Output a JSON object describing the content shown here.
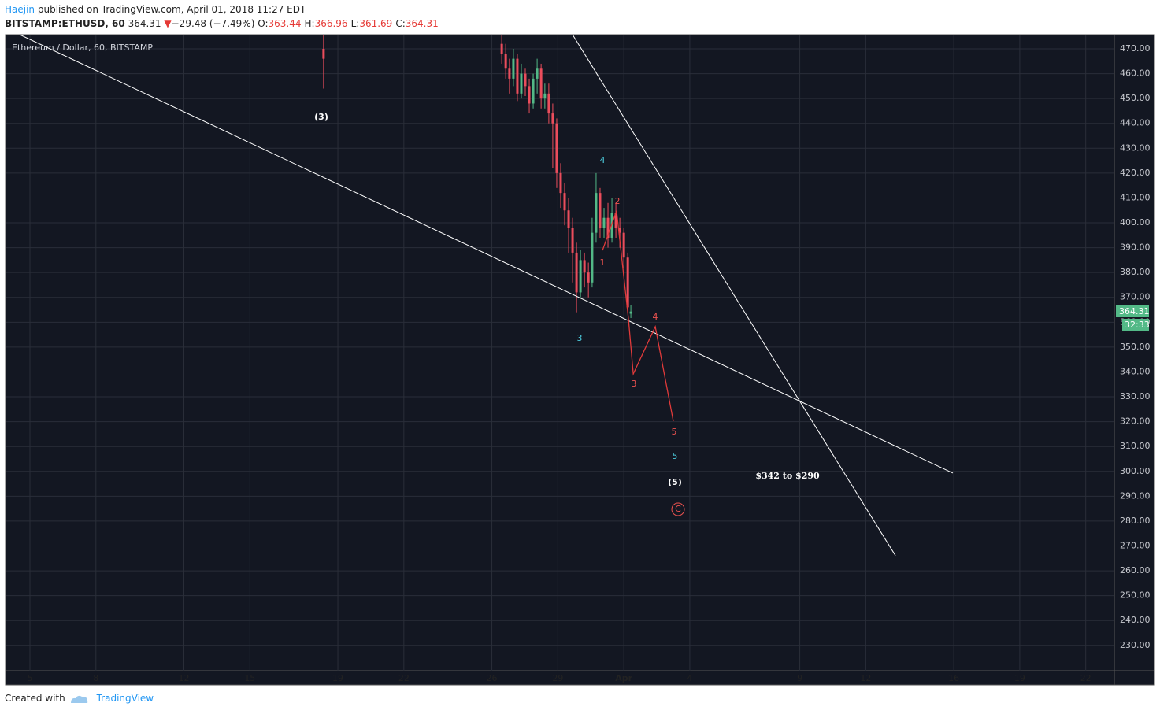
{
  "header": {
    "author": "Haejin",
    "published": " published on TradingView.com, April 01, 2018 11:27 EDT",
    "symbol": "BITSTAMP:ETHUSD, 60",
    "last": 364.31,
    "arrow": "▼",
    "change": "−29.48 (−7.49%)",
    "ohlc": [
      {
        "label": "O:",
        "value": 363.44
      },
      {
        "label": "H:",
        "value": 366.96
      },
      {
        "label": "L:",
        "value": 361.69
      },
      {
        "label": "C:",
        "value": 364.31
      }
    ]
  },
  "chart_data": {
    "type": "candlestick",
    "title": "Ethereum / Dollar, 60, BITSTAMP",
    "x": [
      18.35,
      26.45,
      26.63,
      26.8,
      26.98,
      27.16,
      27.34,
      27.52,
      27.7,
      27.88,
      28.06,
      28.24,
      28.41,
      28.59,
      28.77,
      28.95,
      29.13,
      29.31,
      29.49,
      29.67,
      29.85,
      30.03,
      30.21,
      30.39,
      30.56,
      30.74,
      30.92,
      31.1,
      31.28,
      31.46,
      31.64,
      31.82,
      32.0,
      32.18,
      32.32
    ],
    "open": [
      470,
      472,
      468,
      462,
      458,
      466,
      452,
      460,
      455,
      448,
      458,
      462,
      450,
      452,
      444,
      440,
      420,
      412,
      405,
      398,
      388,
      372,
      385,
      380,
      376,
      396,
      412,
      398,
      402,
      394,
      404,
      398,
      396,
      386,
      363.44
    ],
    "high": [
      476,
      476,
      472,
      466,
      470,
      468,
      464,
      462,
      458,
      460,
      466,
      464,
      456,
      456,
      448,
      442,
      424,
      416,
      410,
      402,
      392,
      389,
      388,
      384,
      402,
      420,
      414,
      406,
      408,
      410,
      408,
      402,
      398,
      388,
      366.96
    ],
    "low": [
      454,
      464,
      458,
      452,
      455,
      449,
      450,
      451,
      444,
      446,
      452,
      446,
      446,
      440,
      422,
      414,
      406,
      399,
      388,
      376,
      364,
      370,
      374,
      370,
      374,
      392,
      394,
      394,
      390,
      392,
      394,
      390,
      382,
      364,
      361.69
    ],
    "close": [
      466,
      468,
      462,
      458,
      466,
      452,
      460,
      455,
      448,
      458,
      462,
      450,
      452,
      444,
      440,
      420,
      412,
      405,
      398,
      388,
      372,
      385,
      380,
      376,
      396,
      412,
      398,
      402,
      394,
      404,
      398,
      396,
      386,
      366,
      364.31
    ],
    "up_color": "#53b987",
    "down_color": "#eb4d5c",
    "xlim": [
      3.89,
      54.3
    ],
    "xticks": [
      5,
      8,
      12,
      15,
      19,
      22,
      26,
      29,
      {
        "value": 32,
        "label": "Apr"
      },
      {
        "value": 35,
        "label": "4"
      },
      {
        "value": 40,
        "label": "9"
      },
      {
        "value": 43,
        "label": "12"
      },
      {
        "value": 47,
        "label": "16"
      },
      {
        "value": 50,
        "label": "19"
      },
      {
        "value": 53,
        "label": "22"
      }
    ],
    "ylim": [
      219.8,
      475.7
    ],
    "yticks": [
      {
        "value": 230,
        "label": "230.00"
      },
      {
        "value": 240,
        "label": "240.00"
      },
      {
        "value": 250,
        "label": "250.00"
      },
      {
        "value": 260,
        "label": "260.00"
      },
      {
        "value": 270,
        "label": "270.00"
      },
      {
        "value": 280,
        "label": "280.00"
      },
      {
        "value": 290,
        "label": "290.00"
      },
      {
        "value": 300,
        "label": "300.00"
      },
      {
        "value": 310,
        "label": "310.00"
      },
      {
        "value": 320,
        "label": "320.00"
      },
      {
        "value": 330,
        "label": "330.00"
      },
      {
        "value": 340,
        "label": "340.00"
      },
      {
        "value": 350,
        "label": "350.00"
      },
      {
        "value": 360,
        "label": "360.00"
      },
      {
        "value": 370,
        "label": "370.00"
      },
      {
        "value": 380,
        "label": "380.00"
      },
      {
        "value": 390,
        "label": "390.00"
      },
      {
        "value": 400,
        "label": "400.00"
      },
      {
        "value": 410,
        "label": "410.00"
      },
      {
        "value": 420,
        "label": "420.00"
      },
      {
        "value": 430,
        "label": "430.00"
      },
      {
        "value": 440,
        "label": "440.00"
      },
      {
        "value": 450,
        "label": "450.00"
      },
      {
        "value": 460,
        "label": "460.00"
      },
      {
        "value": 470,
        "label": "470.00"
      }
    ],
    "grid": true,
    "trendlines": [
      {
        "color": "#ffffff",
        "x": [
          4.54,
          46.96
        ],
        "y": [
          475.7,
          299.3
        ]
      },
      {
        "color": "#ffffff",
        "x": [
          29.67,
          44.35
        ],
        "y": [
          475.7,
          266.1
        ]
      }
    ],
    "wave": {
      "color": "#e03a3a",
      "x": [
        31.03,
        31.67,
        32.21,
        32.43,
        33.43,
        34.25
      ],
      "y": [
        388.9,
        404.8,
        361.4,
        339.2,
        358.2,
        320.2
      ]
    },
    "annotations": [
      {
        "text": "(3)",
        "color": "#ffffff"
      },
      {
        "text": "4",
        "color": "#4dd0e1"
      },
      {
        "text": "2",
        "color": "#ef5350"
      },
      {
        "text": "1",
        "color": "#ef5350"
      },
      {
        "text": "3",
        "color": "#4dd0e1"
      },
      {
        "text": "4",
        "color": "#ef5350"
      },
      {
        "text": "3",
        "color": "#ef5350"
      },
      {
        "text": "5",
        "color": "#ef5350"
      },
      {
        "text": "5",
        "color": "#4dd0e1"
      },
      {
        "text": "(5)",
        "color": "#ffffff"
      },
      {
        "text": "C",
        "color": "#ef5350"
      },
      {
        "text": "$342 to $290",
        "color": "#ffffff"
      }
    ],
    "countdown": "32:33"
  },
  "footer": {
    "created": "Created with",
    "brand": "TradingView"
  }
}
